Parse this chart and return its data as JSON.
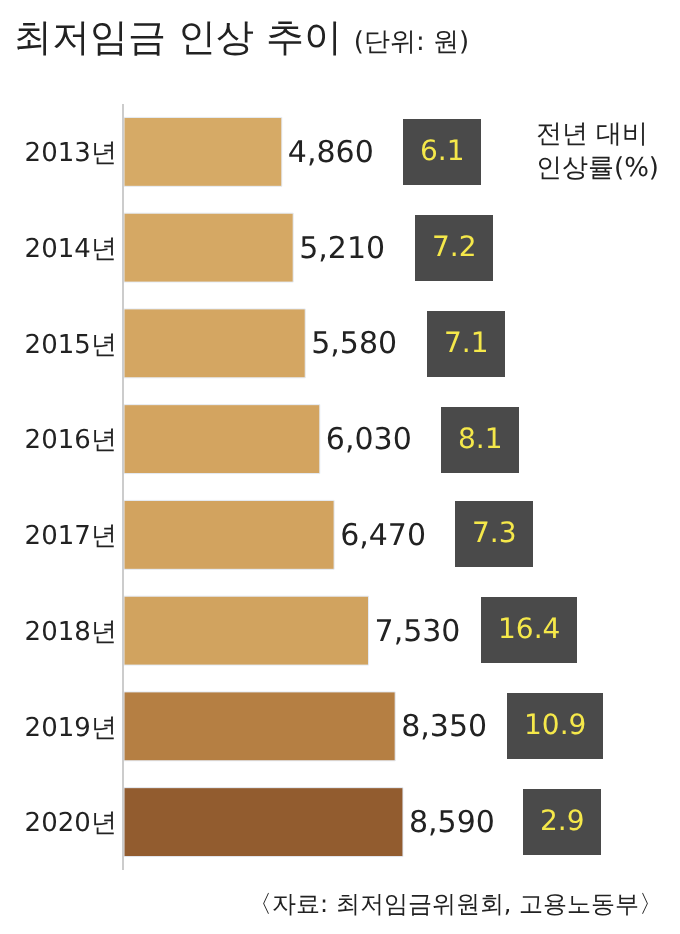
{
  "chart_data": {
    "type": "bar",
    "orientation": "horizontal",
    "title": "최저임금 인상 추이",
    "subtitle": "(단위: 원)",
    "categories": [
      "2013년",
      "2014년",
      "2015년",
      "2016년",
      "2017년",
      "2018년",
      "2019년",
      "2020년"
    ],
    "values": [
      4860,
      5210,
      5580,
      6030,
      6470,
      7530,
      8350,
      8590
    ],
    "value_labels": [
      "4,860",
      "5,210",
      "5,580",
      "6,030",
      "6,470",
      "7,530",
      "8,350",
      "8,590"
    ],
    "colors": [
      "#d6aa66",
      "#d5a864",
      "#d4a662",
      "#d3a460",
      "#d2a35f",
      "#d1a35f",
      "#b57f43",
      "#925c2f"
    ],
    "annotations": [
      "6.1",
      "7.2",
      "7.1",
      "8.1",
      "7.3",
      "16.4",
      "10.9",
      "2.9",
      "전년 대비\n인상률(%)",
      "〈자료: 최저임금위원회, 고용노동부〉"
    ],
    "legend": false
  }
}
